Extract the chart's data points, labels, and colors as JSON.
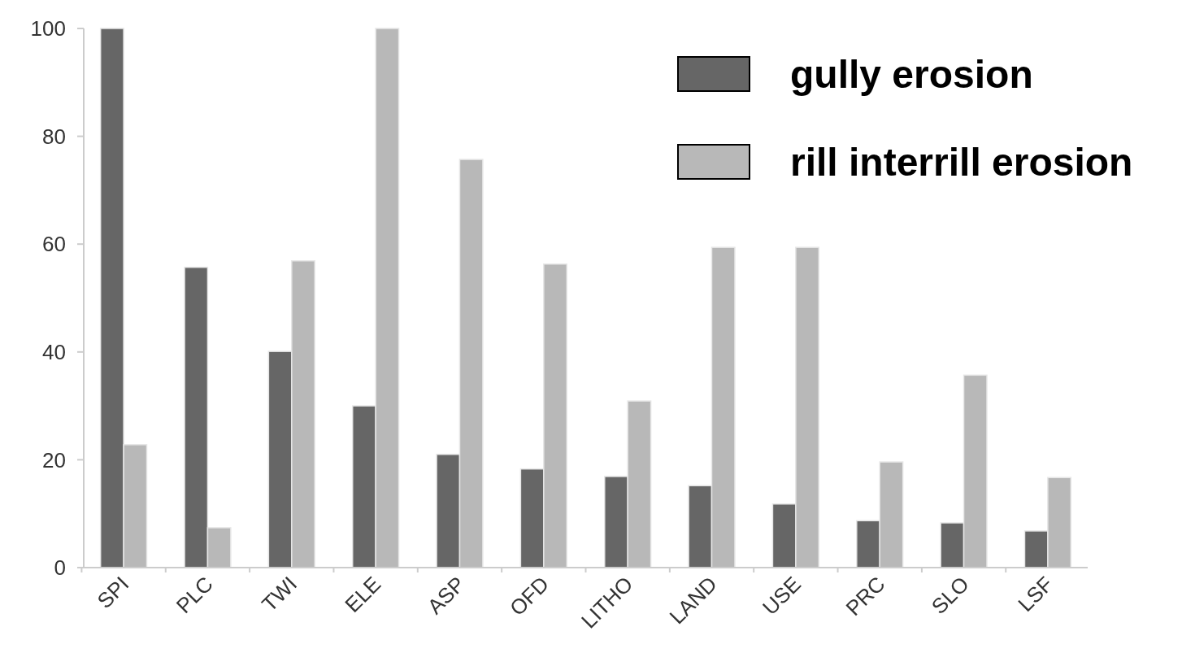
{
  "chart_data": {
    "type": "bar",
    "categories": [
      "SPI",
      "PLC",
      "TWI",
      "ELE",
      "ASP",
      "OFD",
      "LITHO",
      "LAND",
      "USE",
      "PRC",
      "SLO",
      "LSF"
    ],
    "series": [
      {
        "name": "gully erosion",
        "color": "#666666",
        "values": [
          100,
          55.7,
          40.1,
          30,
          21,
          18.3,
          16.9,
          15.2,
          11.8,
          8.7,
          8.3,
          6.8
        ]
      },
      {
        "name": "rill interrill erosion",
        "color": "#b8b8b8",
        "values": [
          22.8,
          7.4,
          56.9,
          100,
          75.7,
          56.3,
          30.9,
          59.4,
          59.4,
          19.6,
          35.7,
          16.7
        ]
      }
    ],
    "ylim": [
      0,
      100
    ],
    "yticks": [
      0,
      20,
      40,
      60,
      80,
      100
    ],
    "grid": false,
    "legend": "top right"
  }
}
